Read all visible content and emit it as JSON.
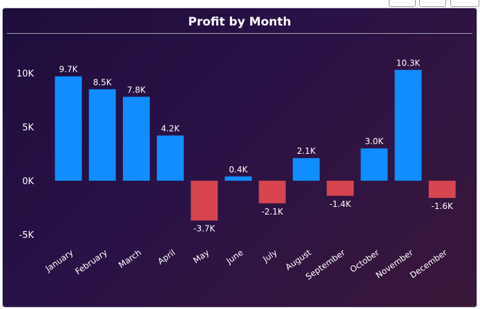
{
  "visual": {
    "title": "Profit by Month"
  },
  "colors": {
    "positive": "#118dff",
    "negative": "#d64550"
  },
  "chart_data": {
    "type": "bar",
    "title": "Profit by Month",
    "xlabel": "",
    "ylabel": "",
    "ylim": [
      -6000,
      12000
    ],
    "yticks": [
      {
        "value": 10000,
        "label": "10K"
      },
      {
        "value": 5000,
        "label": "5K"
      },
      {
        "value": 0,
        "label": "0K"
      },
      {
        "value": -5000,
        "label": "-5K"
      }
    ],
    "grid": false,
    "categories": [
      "January",
      "February",
      "March",
      "April",
      "May",
      "June",
      "July",
      "August",
      "September",
      "October",
      "November",
      "December"
    ],
    "values": [
      9700,
      8500,
      7800,
      4200,
      -3700,
      400,
      -2100,
      2100,
      -1400,
      3000,
      10300,
      -1600
    ],
    "data_labels": [
      "9.7K",
      "8.5K",
      "7.8K",
      "4.2K",
      "-3.7K",
      "0.4K",
      "-2.1K",
      "2.1K",
      "-1.4K",
      "3.0K",
      "10.3K",
      "-1.6K"
    ]
  }
}
